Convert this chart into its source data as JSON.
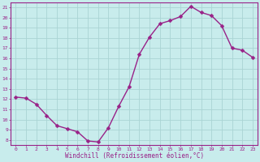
{
  "x": [
    0,
    1,
    2,
    3,
    4,
    5,
    6,
    7,
    8,
    9,
    10,
    11,
    12,
    13,
    14,
    15,
    16,
    17,
    18,
    19,
    20,
    21,
    22,
    23
  ],
  "y": [
    12.2,
    12.1,
    11.5,
    10.4,
    9.4,
    9.1,
    8.8,
    7.9,
    7.8,
    9.2,
    11.3,
    13.2,
    16.4,
    18.1,
    19.4,
    19.7,
    20.1,
    21.1,
    20.5,
    20.2,
    19.2,
    17.0,
    16.8,
    16.1
  ],
  "line_color": "#992288",
  "marker": "D",
  "marker_size": 2.5,
  "bg_color": "#c8ecec",
  "grid_color": "#aad4d4",
  "xlabel": "Windchill (Refroidissement éolien,°C)",
  "xlabel_color": "#992288",
  "tick_color": "#992288",
  "xlim": [
    -0.5,
    23.5
  ],
  "ylim": [
    7.5,
    21.5
  ],
  "yticks": [
    8,
    9,
    10,
    11,
    12,
    13,
    14,
    15,
    16,
    17,
    18,
    19,
    20,
    21
  ],
  "xticks": [
    0,
    1,
    2,
    3,
    4,
    5,
    6,
    7,
    8,
    9,
    10,
    11,
    12,
    13,
    14,
    15,
    16,
    17,
    18,
    19,
    20,
    21,
    22,
    23
  ],
  "spine_color": "#992288",
  "axis_bg": "#c8ecec",
  "linewidth": 1.0
}
